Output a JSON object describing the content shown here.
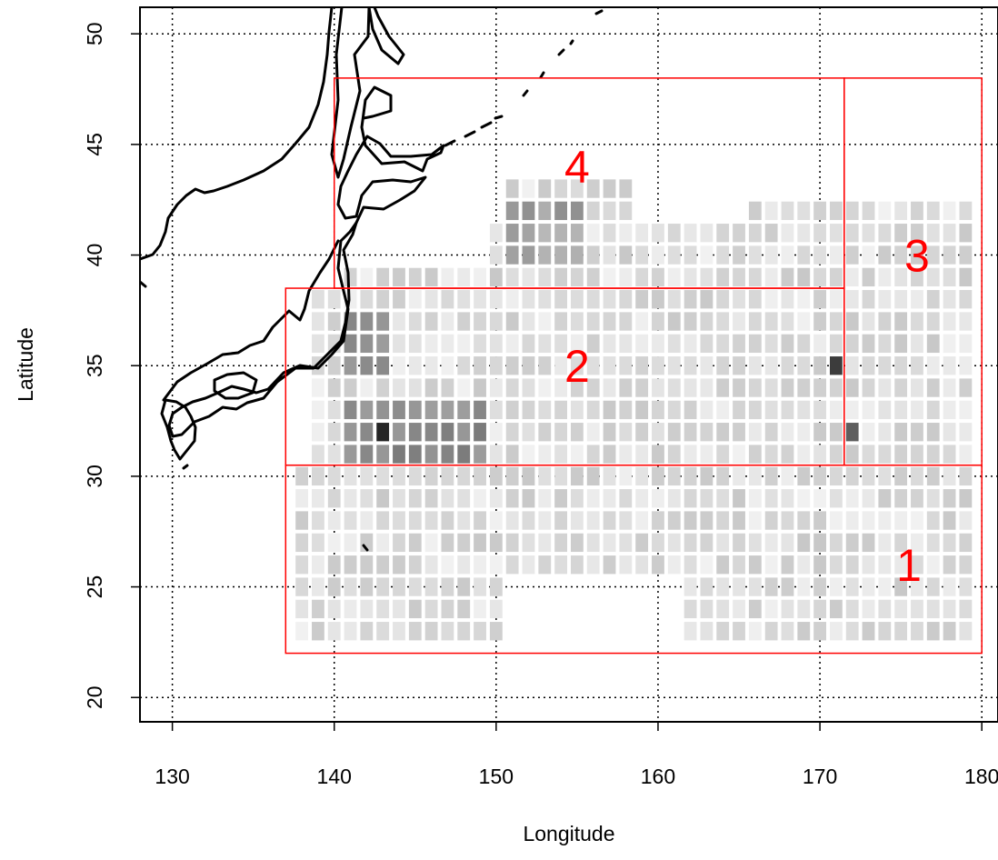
{
  "chart_data": {
    "type": "heatmap",
    "xlabel": "Longitude",
    "ylabel": "Latitude",
    "xlim": [
      128,
      181
    ],
    "ylim": [
      18.9,
      51.2
    ],
    "x_ticks": [
      {
        "value": 130,
        "label": "130"
      },
      {
        "value": 140,
        "label": "140"
      },
      {
        "value": 150,
        "label": "150"
      },
      {
        "value": 160,
        "label": "160"
      },
      {
        "value": 170,
        "label": "170"
      },
      {
        "value": 180,
        "label": "180"
      }
    ],
    "y_ticks": [
      {
        "value": 20,
        "label": "20"
      },
      {
        "value": 25,
        "label": "25"
      },
      {
        "value": 30,
        "label": "30"
      },
      {
        "value": 35,
        "label": "35"
      },
      {
        "value": 40,
        "label": "40"
      },
      {
        "value": 45,
        "label": "45"
      },
      {
        "value": 50,
        "label": "50"
      }
    ],
    "grid": "dotted at each tick",
    "grid_cell_degrees": 1,
    "regions": [
      {
        "label": "1",
        "lon_range": [
          137,
          180
        ],
        "lat_range": [
          22,
          30.5
        ],
        "label_lon": 175.5,
        "label_lat": 26,
        "color": "#ff0000"
      },
      {
        "label": "2",
        "lon_range": [
          137,
          171.5
        ],
        "lat_range": [
          30.5,
          38.5
        ],
        "label_lon": 155,
        "label_lat": 35,
        "color": "#ff0000"
      },
      {
        "label": "3",
        "lon_range": [
          171.5,
          180
        ],
        "lat_range": [
          30.5,
          48
        ],
        "label_lon": 176,
        "label_lat": 40,
        "color": "#ff0000"
      },
      {
        "label": "4",
        "lon_range": [
          140,
          171.5
        ],
        "lat_range": [
          38.5,
          48
        ],
        "label_lon": 155,
        "label_lat": 44,
        "color": "#ff0000"
      }
    ],
    "coastline_color": "#000000"
  }
}
